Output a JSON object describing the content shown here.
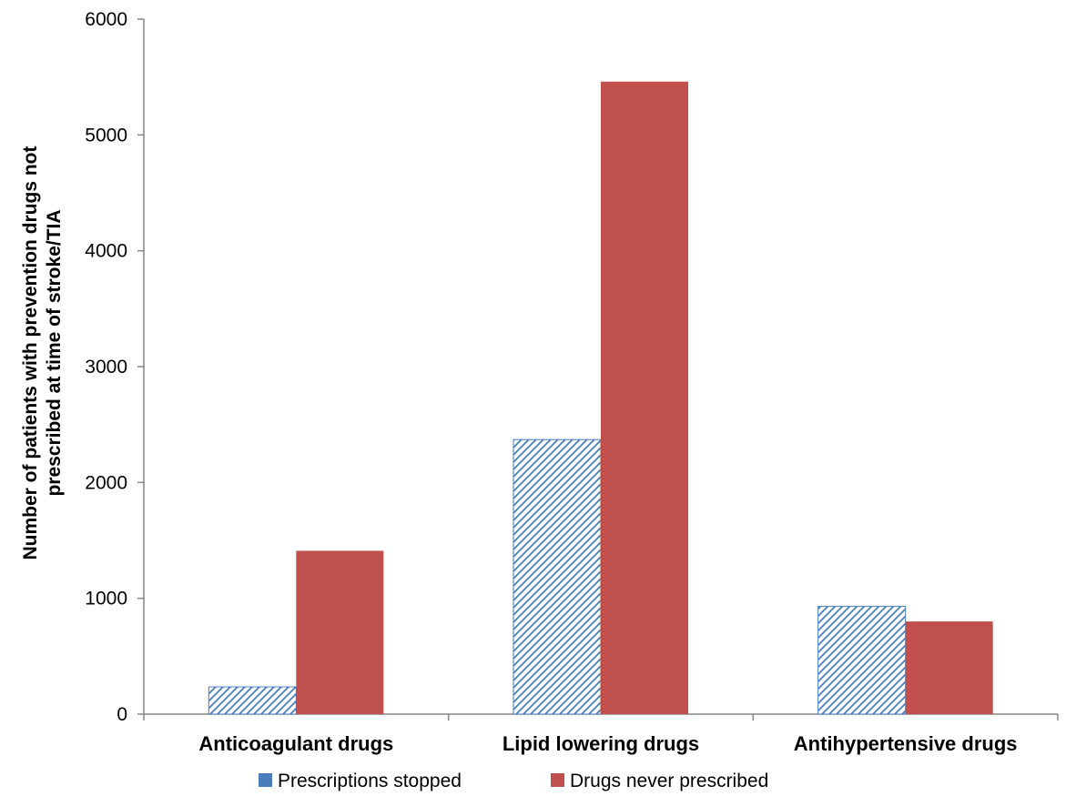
{
  "chart_data": {
    "type": "bar",
    "categories": [
      "Anticoagulant drugs",
      "Lipid lowering drugs",
      "Antihypertensive drugs"
    ],
    "series": [
      {
        "name": "Prescriptions stopped",
        "values": [
          235,
          2370,
          930
        ],
        "color": "#4a7ebb",
        "fill": "hatched"
      },
      {
        "name": "Drugs never prescribed",
        "values": [
          1410,
          5460,
          800
        ],
        "color": "#c0504d",
        "fill": "solid"
      }
    ],
    "ylabel_lines": [
      "Number of patients with prevention drugs not",
      "prescribed at time of stroke/TIA"
    ],
    "xlabel": "",
    "ylim": [
      0,
      6000
    ],
    "yticks": [
      0,
      1000,
      2000,
      3000,
      4000,
      5000,
      6000
    ],
    "grid": false,
    "legend_position": "bottom"
  }
}
